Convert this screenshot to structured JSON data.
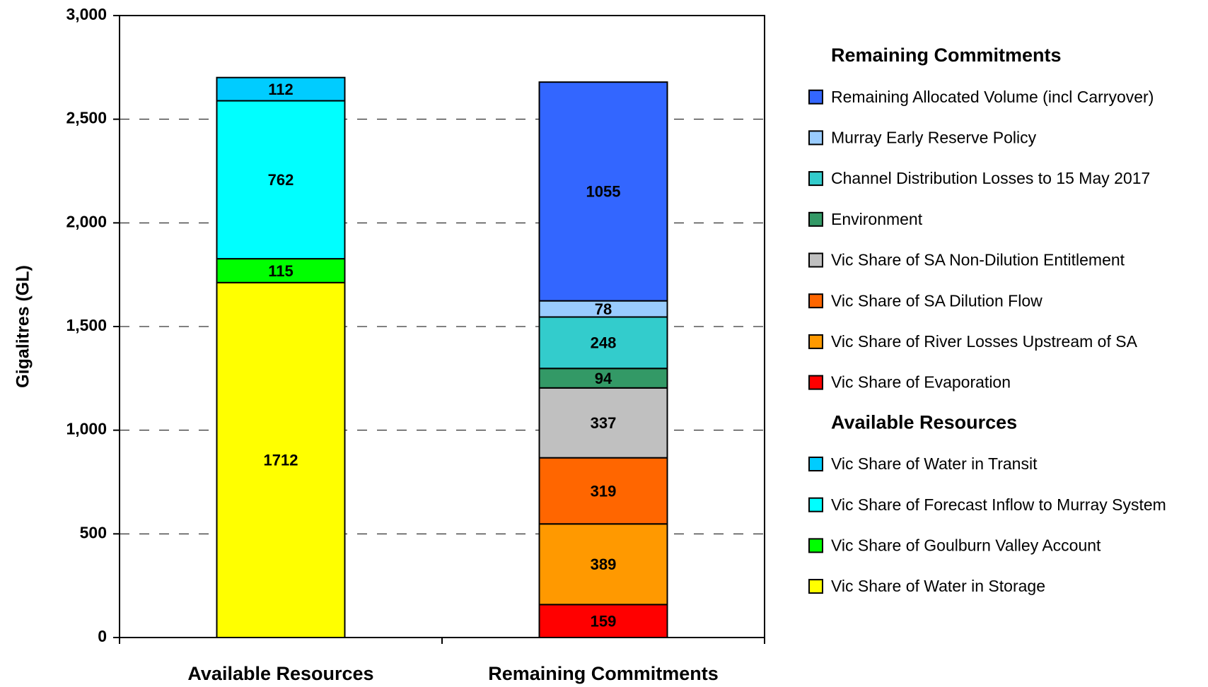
{
  "chart_data": {
    "type": "stacked_bar",
    "y_label": "Gigalitres (GL)",
    "categories": [
      "Available Resources",
      "Remaining Commitments"
    ],
    "ylim": [
      0,
      3000
    ],
    "yticks": [
      0,
      500,
      {
        "value": 1000,
        "label": "1,000"
      },
      {
        "value": 1500,
        "label": "1,500"
      },
      {
        "value": 2000,
        "label": "2,000"
      },
      {
        "value": 2500,
        "label": "2,500"
      },
      {
        "value": 3000,
        "label": "3,000"
      }
    ],
    "grid": true,
    "series": [
      {
        "name": "Vic Share of Water in Storage",
        "color": "#ffff00",
        "values": [
          1712,
          null
        ]
      },
      {
        "name": "Vic Share of Goulburn Valley Account",
        "color": "#00ff00",
        "values": [
          115,
          null
        ]
      },
      {
        "name": "Vic Share of Forecast Inflow to Murray System",
        "color": "#00ffff",
        "values": [
          762,
          null
        ]
      },
      {
        "name": "Vic Share of Water in Transit",
        "color": "#00ccff",
        "values": [
          112,
          null
        ]
      },
      {
        "name": "Vic Share of Evaporation",
        "color": "#ff0000",
        "values": [
          null,
          159
        ]
      },
      {
        "name": "Vic Share of River Losses Upstream of SA",
        "color": "#ff9900",
        "values": [
          null,
          389
        ]
      },
      {
        "name": "Vic Share of SA Dilution Flow",
        "color": "#ff6600",
        "values": [
          null,
          319
        ]
      },
      {
        "name": "Vic Share of SA Non-Dilution Entitlement",
        "color": "#c0c0c0",
        "values": [
          null,
          337
        ]
      },
      {
        "name": "Environment",
        "color": "#339966",
        "values": [
          null,
          94
        ]
      },
      {
        "name": "Channel Distribution Losses to 15 May 2017",
        "color": "#33cccc",
        "values": [
          null,
          248
        ]
      },
      {
        "name": "Murray Early Reserve Policy",
        "color": "#99ccff",
        "values": [
          null,
          78
        ]
      },
      {
        "name": "Remaining Allocated Volume (incl Carryover)",
        "color": "#3366ff",
        "values": [
          null,
          1055
        ]
      }
    ]
  }
}
